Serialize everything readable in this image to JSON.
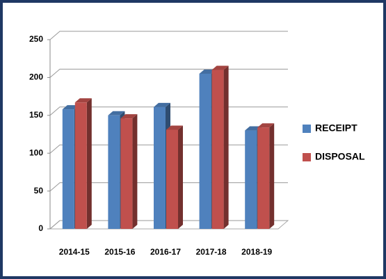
{
  "chart_data": {
    "type": "bar3d",
    "categories": [
      "2014-15",
      "2015-16",
      "2016-17",
      "2017-18",
      "2018-19"
    ],
    "series": [
      {
        "name": "RECEIPT",
        "color": "#4f81bd",
        "values": [
          158,
          150,
          161,
          205,
          130
        ]
      },
      {
        "name": "DISPOSAL",
        "color": "#c0504d",
        "values": [
          167,
          146,
          131,
          210,
          134
        ]
      }
    ],
    "ylim": [
      0,
      250
    ],
    "yticks": [
      0,
      50,
      100,
      150,
      200,
      250
    ],
    "grid": true,
    "legend": "right"
  }
}
